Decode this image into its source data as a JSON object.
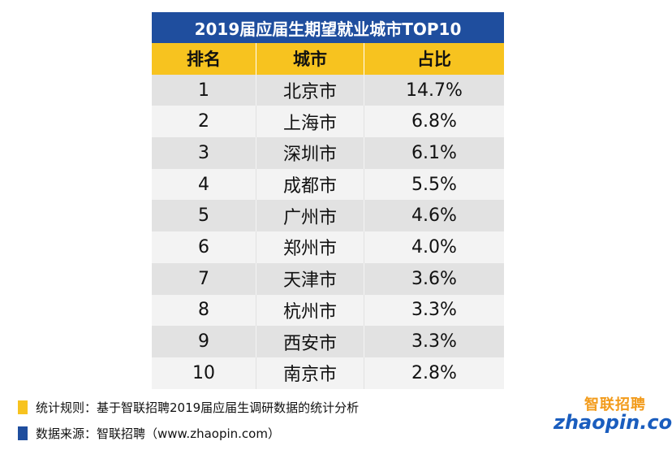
{
  "title": "2019届应届生期望就业城市TOP10",
  "headers": {
    "rank": "排名",
    "city": "城市",
    "share": "占比"
  },
  "rows": [
    {
      "rank": "1",
      "city": "北京市",
      "share": "14.7%"
    },
    {
      "rank": "2",
      "city": "上海市",
      "share": "6.8%"
    },
    {
      "rank": "3",
      "city": "深圳市",
      "share": "6.1%"
    },
    {
      "rank": "4",
      "city": "成都市",
      "share": "5.5%"
    },
    {
      "rank": "5",
      "city": "广州市",
      "share": "4.6%"
    },
    {
      "rank": "6",
      "city": "郑州市",
      "share": "4.0%"
    },
    {
      "rank": "7",
      "city": "天津市",
      "share": "3.6%"
    },
    {
      "rank": "8",
      "city": "杭州市",
      "share": "3.3%"
    },
    {
      "rank": "9",
      "city": "西安市",
      "share": "3.3%"
    },
    {
      "rank": "10",
      "city": "南京市",
      "share": "2.8%"
    }
  ],
  "notes": {
    "rule": "统计规则：基于智联招聘2019届应届生调研数据的统计分析",
    "source": "数据来源：智联招聘（www.zhaopin.com）"
  },
  "logo": {
    "cn": "智联招聘",
    "en": "zhaopin.com"
  },
  "colors": {
    "title_bg": "#1f4e9e",
    "header_bg": "#f7c31f",
    "row_odd": "#e2e2e2",
    "row_even": "#f3f3f3"
  },
  "chart_data": {
    "type": "table",
    "title": "2019届应届生期望就业城市TOP10",
    "columns": [
      "排名",
      "城市",
      "占比"
    ],
    "rows": [
      [
        "1",
        "北京市",
        "14.7%"
      ],
      [
        "2",
        "上海市",
        "6.8%"
      ],
      [
        "3",
        "深圳市",
        "6.1%"
      ],
      [
        "4",
        "成都市",
        "5.5%"
      ],
      [
        "5",
        "广州市",
        "4.6%"
      ],
      [
        "6",
        "郑州市",
        "4.0%"
      ],
      [
        "7",
        "天津市",
        "3.6%"
      ],
      [
        "8",
        "杭州市",
        "3.3%"
      ],
      [
        "9",
        "西安市",
        "3.3%"
      ],
      [
        "10",
        "南京市",
        "2.8%"
      ]
    ]
  }
}
